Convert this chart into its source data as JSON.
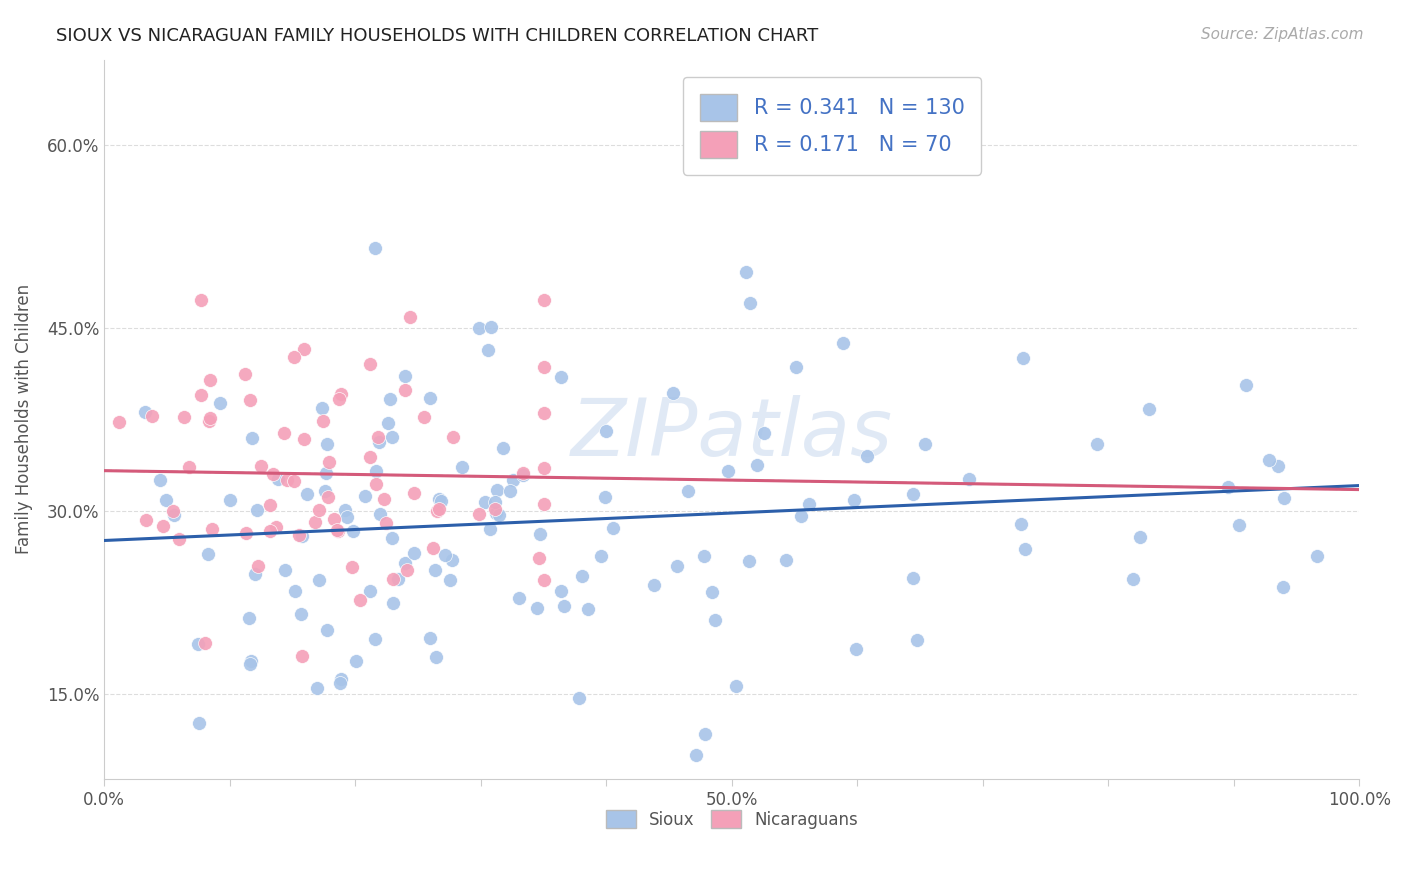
{
  "title": "SIOUX VS NICARAGUAN FAMILY HOUSEHOLDS WITH CHILDREN CORRELATION CHART",
  "source_text": "Source: ZipAtlas.com",
  "ylabel": "Family Households with Children",
  "xlim": [
    0.0,
    1.0
  ],
  "ylim": [
    0.08,
    0.67
  ],
  "y_ticks": [
    0.15,
    0.3,
    0.45,
    0.6
  ],
  "y_tick_labels": [
    "15.0%",
    "30.0%",
    "45.0%",
    "60.0%"
  ],
  "x_tick_labels_shown": [
    "0.0%",
    "50.0%",
    "100.0%"
  ],
  "sioux_color": "#a8c4e8",
  "nicaraguan_color": "#f4a0b8",
  "sioux_line_color": "#2c5faa",
  "nicaraguan_line_color": "#d45a7a",
  "dashed_line_color": "#c8a0b0",
  "legend_color": "#4472c4",
  "legend_R1": "0.341",
  "legend_N1": "130",
  "legend_R2": "0.171",
  "legend_N2": "70",
  "watermark": "ZIPatlas",
  "background_color": "#ffffff",
  "grid_color": "#dddddd"
}
